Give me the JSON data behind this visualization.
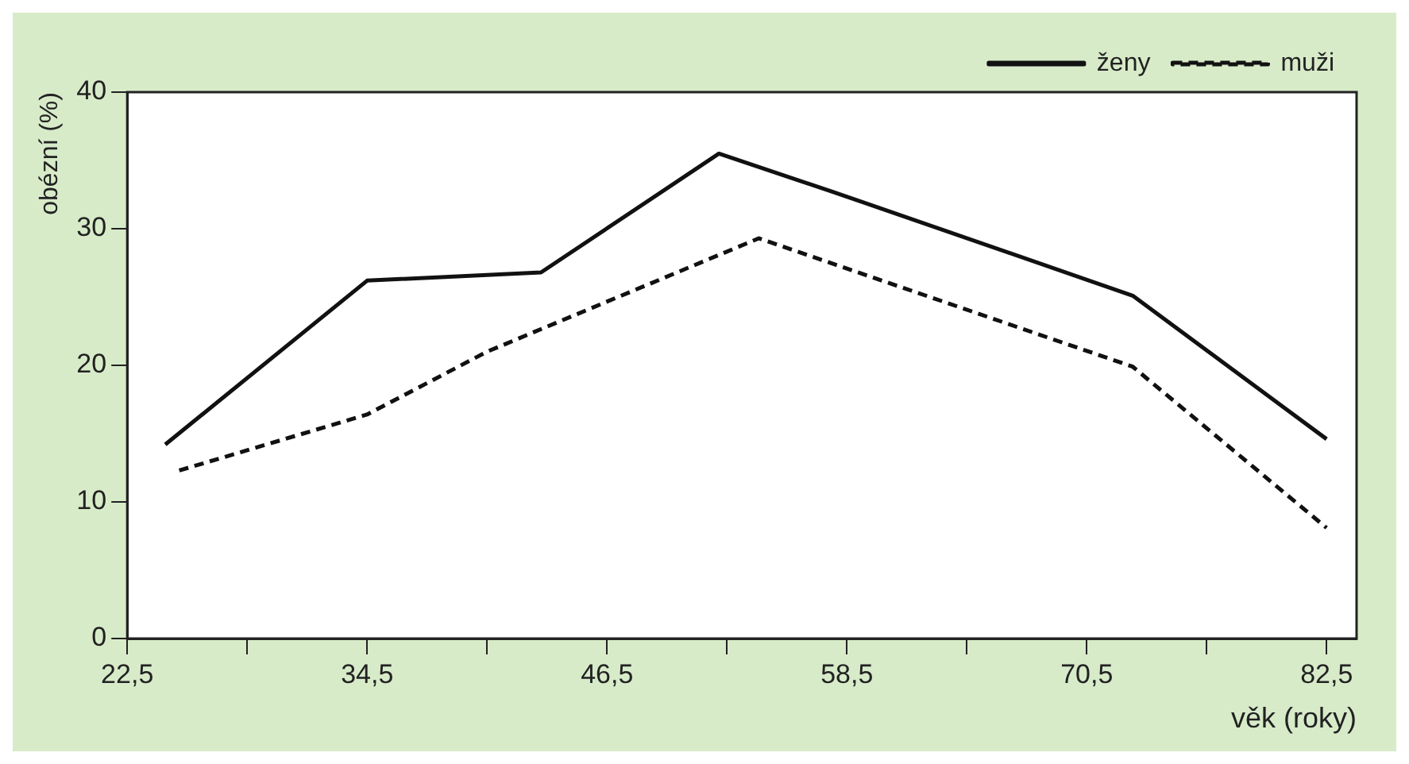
{
  "chart_data": {
    "type": "line",
    "xlabel": "věk (roky)",
    "ylabel": "obézní (%)",
    "series": [
      {
        "name": "ženy",
        "color": "#111111",
        "line_style": "solid",
        "x": [
          24.4,
          34.5,
          43.2,
          52.1,
          57.8,
          72.8,
          82.5
        ],
        "values": [
          14.2,
          26.2,
          26.8,
          35.5,
          32.7,
          25.1,
          14.6
        ]
      },
      {
        "name": "muži",
        "color": "#111111",
        "line_style": "dashed",
        "x": [
          25.1,
          34.5,
          40.5,
          54.1,
          72.8,
          82.5
        ],
        "values": [
          12.3,
          16.4,
          21.0,
          29.3,
          19.9,
          8.1
        ]
      }
    ],
    "xlim": [
      22.5,
      84
    ],
    "ylim": [
      0,
      40
    ],
    "xticks": [
      {
        "value": 22.5,
        "label": "22,5"
      },
      {
        "value": 28.5,
        "label": null
      },
      {
        "value": 34.5,
        "label": "34,5"
      },
      {
        "value": 40.5,
        "label": null
      },
      {
        "value": 46.5,
        "label": "46,5"
      },
      {
        "value": 52.5,
        "label": null
      },
      {
        "value": 58.5,
        "label": "58,5"
      },
      {
        "value": 64.5,
        "label": null
      },
      {
        "value": 70.5,
        "label": "70,5"
      },
      {
        "value": 76.5,
        "label": null
      },
      {
        "value": 82.5,
        "label": "82,5"
      }
    ],
    "yticks": [
      0,
      10,
      20,
      30,
      40
    ],
    "grid": false,
    "legend": "top right",
    "marker": "none"
  }
}
